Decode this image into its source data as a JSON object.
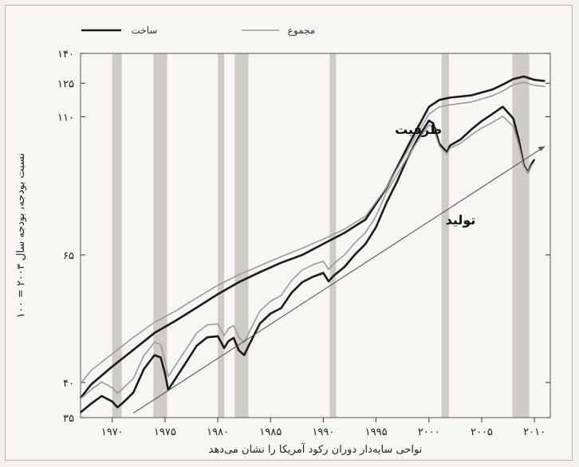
{
  "chart_data": {
    "type": "line",
    "title": "",
    "ylabel": "نسبت بودجه، بودجه سال ۲۰۰۳ = ۱۰۰",
    "xlabel": "نواحی سایه‌دار دوران رکود آمریکا را نشان می‌دهد",
    "y_scale": "log",
    "ylim": [
      35,
      140
    ],
    "xlim": [
      1967,
      2011.5
    ],
    "grid": false,
    "legend_position": "top",
    "y_ticks": [
      {
        "value": 35,
        "label": "۳۵"
      },
      {
        "value": 40,
        "label": "۴۰"
      },
      {
        "value": 65,
        "label": "۶۵"
      },
      {
        "value": 110,
        "label": "۱۱۰"
      },
      {
        "value": 125,
        "label": "۱۲۵"
      },
      {
        "value": 140,
        "label": "۱۴۰"
      }
    ],
    "x_ticks": [
      {
        "value": 1970,
        "label": "۱۹۷۰"
      },
      {
        "value": 1975,
        "label": "۱۹۷۵"
      },
      {
        "value": 1980,
        "label": "۱۹۸۰"
      },
      {
        "value": 1985,
        "label": "۱۹۸۵"
      },
      {
        "value": 1990,
        "label": "۱۹۹۰"
      },
      {
        "value": 1995,
        "label": "۱۹۹۵"
      },
      {
        "value": 2000,
        "label": "۲۰۰۰"
      },
      {
        "value": 2005,
        "label": "۲۰۰۵"
      },
      {
        "value": 2010,
        "label": "۲۰۱۰"
      }
    ],
    "recessions": [
      [
        1970.0,
        1970.9
      ],
      [
        1973.9,
        1975.2
      ],
      [
        1980.0,
        1980.6
      ],
      [
        1981.6,
        1982.9
      ],
      [
        1990.6,
        1991.2
      ],
      [
        2001.2,
        2001.9
      ],
      [
        2007.9,
        2009.5
      ]
    ],
    "annotations": [
      {
        "text": "ظرفیت",
        "x": 1999,
        "y": 103
      },
      {
        "text": "تولید",
        "x": 2003,
        "y": 73
      }
    ],
    "series": [
      {
        "name": "ساخت",
        "group": "capacity",
        "color": "#1a1a1a",
        "x": [
          1967,
          1968,
          1970,
          1972,
          1974,
          1976,
          1978,
          1980,
          1982,
          1984,
          1986,
          1988,
          1990,
          1992,
          1994,
          1996,
          1998,
          2000,
          2001,
          2002,
          2004,
          2006,
          2007,
          2008,
          2009,
          2010,
          2011
        ],
        "y": [
          37.7,
          39.7,
          42.5,
          45.3,
          48.3,
          50.6,
          53.2,
          56.0,
          58.6,
          60.9,
          63.1,
          65.0,
          67.8,
          70.7,
          74.4,
          83.9,
          98.3,
          114.2,
          117.3,
          118.3,
          119.3,
          122.0,
          124.3,
          127.0,
          128.2,
          126.6,
          126.0
        ]
      },
      {
        "name": "مجموع",
        "group": "capacity",
        "color": "#9a9a9a",
        "x": [
          1967,
          1968,
          1970,
          1972,
          1974,
          1976,
          1978,
          1980,
          1982,
          1984,
          1986,
          1988,
          1990,
          1992,
          1994,
          1996,
          1998,
          2000,
          2001,
          2002,
          2004,
          2006,
          2007,
          2008,
          2009,
          2010,
          2011
        ],
        "y": [
          39.8,
          41.9,
          44.6,
          47.5,
          50.3,
          52.5,
          55.2,
          57.9,
          60.3,
          62.4,
          64.6,
          66.7,
          69.0,
          71.7,
          75.3,
          84.1,
          96.8,
          111.1,
          114.2,
          115.1,
          116.3,
          119.1,
          121.3,
          124.3,
          125.4,
          124.0,
          123.4
        ]
      },
      {
        "name": "ساخت",
        "group": "production",
        "color": "#1a1a1a",
        "x": [
          1967,
          1968,
          1969,
          1970,
          1970.5,
          1971,
          1972,
          1973,
          1974,
          1974.6,
          1975,
          1975.3,
          1976,
          1977,
          1978,
          1979,
          1980,
          1980.3,
          1980.6,
          1981,
          1981.5,
          1982,
          1982.5,
          1983,
          1984,
          1985,
          1986,
          1987,
          1988,
          1989,
          1990,
          1990.5,
          1991,
          1992,
          1993,
          1994,
          1995,
          1996,
          1997,
          1998,
          1999,
          2000,
          2000.4,
          2001,
          2001.7,
          2002,
          2003,
          2004,
          2005,
          2006,
          2007,
          2008,
          2008.5,
          2009,
          2009.4,
          2009.7,
          2010
        ],
        "y": [
          35.7,
          36.9,
          38.0,
          37.2,
          36.4,
          37.0,
          38.5,
          42.1,
          44.4,
          44.0,
          41.4,
          38.9,
          40.6,
          43.2,
          46.0,
          47.5,
          47.7,
          46.7,
          45.6,
          46.8,
          47.4,
          45.2,
          44.4,
          46.3,
          50.1,
          52.0,
          53.1,
          56.3,
          58.6,
          59.8,
          60.7,
          58.8,
          60.1,
          62.1,
          65.1,
          67.8,
          72.3,
          79.4,
          86.1,
          94.2,
          101.7,
          108.4,
          107.3,
          99.2,
          96.1,
          98.6,
          100.9,
          104.7,
          108.2,
          111.1,
          114.3,
          109.2,
          101.1,
          91.4,
          89.0,
          91.8,
          93.5
        ]
      },
      {
        "name": "مجموع",
        "group": "production",
        "color": "#9a9a9a",
        "x": [
          1967,
          1968,
          1969,
          1970,
          1970.5,
          1971,
          1972,
          1973,
          1974,
          1974.6,
          1975,
          1975.3,
          1976,
          1977,
          1978,
          1979,
          1980,
          1980.3,
          1980.6,
          1981,
          1981.5,
          1982,
          1982.5,
          1983,
          1984,
          1985,
          1986,
          1987,
          1988,
          1989,
          1990,
          1990.5,
          1991,
          1992,
          1993,
          1994,
          1995,
          1996,
          1997,
          1998,
          1999,
          2000,
          2000.4,
          2001,
          2001.7,
          2002,
          2003,
          2004,
          2005,
          2006,
          2007,
          2008,
          2008.5,
          2009,
          2009.4,
          2009.7,
          2010
        ],
        "y": [
          37.6,
          38.9,
          40.1,
          39.2,
          38.4,
          39.1,
          40.6,
          44.3,
          46.6,
          46.2,
          43.4,
          40.9,
          42.7,
          45.4,
          48.3,
          49.8,
          50.0,
          49.0,
          47.8,
          49.1,
          49.7,
          47.5,
          46.6,
          48.6,
          52.5,
          54.5,
          55.7,
          59.0,
          61.4,
          62.6,
          63.5,
          61.5,
          62.9,
          65.0,
          68.1,
          70.8,
          75.4,
          82.6,
          88.4,
          94.4,
          100.7,
          106.6,
          105.5,
          98.4,
          95.5,
          97.6,
          99.5,
          102.6,
          105.4,
          107.6,
          110.2,
          106.0,
          99.0,
          91.0,
          88.9,
          91.2,
          92.7
        ]
      },
      {
        "name": "",
        "group": "trend",
        "color": "#555555",
        "x": [
          1972,
          2011
        ],
        "y": [
          35.6,
          98.3
        ]
      }
    ]
  }
}
